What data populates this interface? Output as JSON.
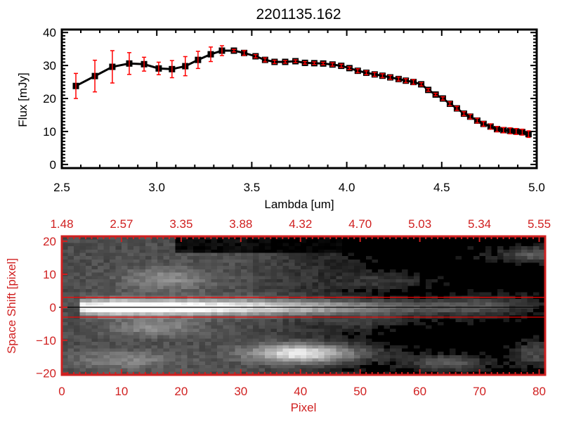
{
  "chart_data": [
    {
      "type": "line",
      "title": "2201135.162",
      "xlabel": "Lambda [um]",
      "ylabel": "Flux [mJy]",
      "xlim": [
        2.5,
        5.0
      ],
      "ylim": [
        -1.1,
        40.9
      ],
      "xticks": [
        "2.5",
        "3.0",
        "3.5",
        "4.0",
        "4.5",
        "5.0"
      ],
      "yticks": [
        "0",
        "10",
        "20",
        "30",
        "40"
      ],
      "line_color": "#000000",
      "marker": "square",
      "error_color": "#ff0000",
      "x": [
        2.574,
        2.674,
        2.766,
        2.855,
        2.933,
        3.01,
        3.08,
        3.15,
        3.217,
        3.284,
        3.343,
        3.406,
        3.46,
        3.52,
        3.57,
        3.62,
        3.676,
        3.73,
        3.78,
        3.829,
        3.876,
        3.925,
        3.971,
        4.014,
        4.058,
        4.103,
        4.147,
        4.188,
        4.229,
        4.273,
        4.311,
        4.351,
        4.392,
        4.429,
        4.468,
        4.506,
        4.543,
        4.58,
        4.617,
        4.65,
        4.687,
        4.72,
        4.757,
        4.791,
        4.825,
        4.86,
        4.892,
        4.924,
        4.957
      ],
      "y": [
        23.8,
        26.8,
        29.6,
        30.6,
        30.4,
        29.1,
        28.9,
        29.8,
        31.7,
        33.4,
        34.5,
        34.5,
        33.8,
        32.8,
        31.7,
        31.1,
        31.1,
        31.3,
        30.8,
        30.7,
        30.6,
        30.3,
        29.9,
        29.2,
        28.4,
        27.8,
        27.3,
        26.9,
        26.4,
        25.9,
        25.4,
        25.0,
        24.3,
        22.6,
        21.2,
        20.0,
        18.4,
        17.0,
        15.4,
        14.5,
        13.3,
        12.3,
        11.5,
        10.7,
        10.4,
        10.2,
        10.0,
        9.8,
        9.2
      ],
      "yerr": [
        3.8,
        4.8,
        4.9,
        3.3,
        2.1,
        1.9,
        2.6,
        2.9,
        2.6,
        2.2,
        1.5,
        0.4,
        0.7,
        0.5,
        0.6,
        0.5,
        0.4,
        0.4,
        0.4,
        0.4,
        0.4,
        0.5,
        0.5,
        0.4,
        0.6,
        0.6,
        0.6,
        0.6,
        0.6,
        0.6,
        0.6,
        0.7,
        0.5,
        0.4,
        0.4,
        0.5,
        0.6,
        0.6,
        0.6,
        0.7,
        0.7,
        0.7,
        0.8,
        0.8,
        0.8,
        0.9,
        0.9,
        0.9,
        1.0
      ]
    },
    {
      "type": "heatmap",
      "colormap": "grayscale",
      "axis_color": "#d02020",
      "xlabel": "Pixel",
      "ylabel": "Space Shift [pixel]",
      "xlim": [
        0,
        81
      ],
      "ylim": [
        -20.5,
        21.5
      ],
      "xticks": [
        "0",
        "10",
        "20",
        "30",
        "40",
        "50",
        "60",
        "70",
        "80"
      ],
      "yticks": [
        "20",
        "10",
        "0",
        "-10",
        "-20"
      ],
      "top_xticks": [
        "1.48",
        "2.57",
        "3.35",
        "3.88",
        "4.32",
        "4.70",
        "5.03",
        "5.34",
        "5.55"
      ],
      "hlines": [
        {
          "y": 3,
          "color": "#ff0000"
        },
        {
          "y": 0,
          "color": "#000000"
        },
        {
          "y": -3,
          "color": "#ff0000"
        }
      ]
    }
  ]
}
